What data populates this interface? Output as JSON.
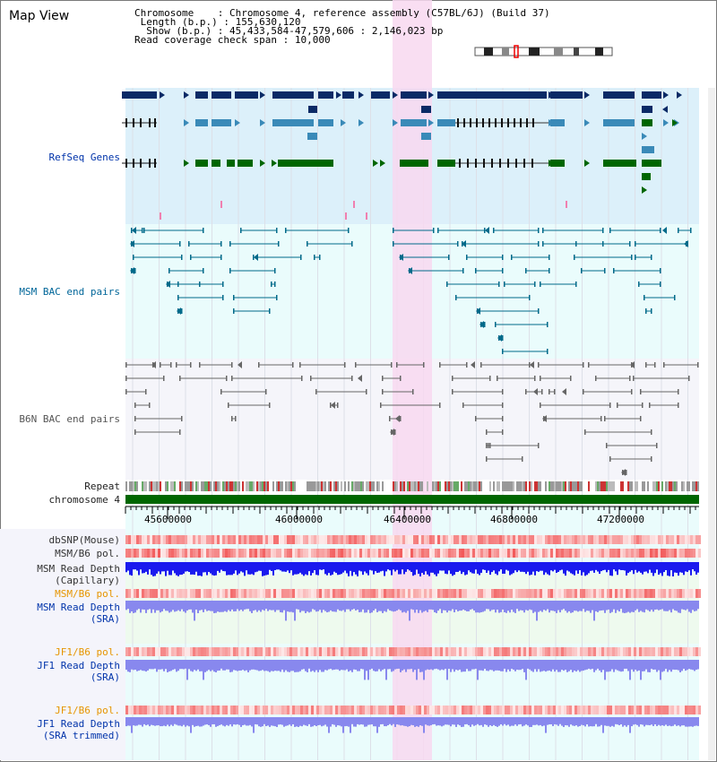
{
  "title": "Map View",
  "info": {
    "chromosome_key": "Chromosome",
    "chromosome_val": "Chromosome 4, reference assembly (C57BL/6J) (Build 37)",
    "length_key": "Length (b.p.)",
    "length_val": "155,630,120",
    "show_key": "Show (b.p.)",
    "show_val": "45,433,584-47,579,606 : 2,146,023 bp",
    "span_key": "Read coverage check span",
    "span_val": "10,000"
  },
  "tracks": {
    "refseq": "RefSeq Genes",
    "msm_bac": "MSM BAC end pairs",
    "b6n_bac": "B6N BAC end pairs",
    "repeat": "Repeat",
    "chromosome": "chromosome 4",
    "dbsnp": "dbSNP(Mouse)",
    "msm_b6_pol": "MSM/B6 pol.",
    "msm_depth_cap_1": "MSM Read Depth",
    "msm_depth_cap_2": "(Capillary)",
    "msm_b6_pol2": "MSM/B6 pol.",
    "msm_depth_sra_1": "MSM Read Depth",
    "msm_depth_sra_2": "(SRA)",
    "jf1_b6_pol": "JF1/B6 pol.",
    "jf1_depth_sra_1": "JF1 Read Depth",
    "jf1_depth_sra_2": "(SRA)",
    "jf1_b6_pol2": "JF1/B6 pol.",
    "jf1_depth_trim_1": "JF1 Read Depth",
    "jf1_depth_trim_2": "(SRA trimmed)"
  },
  "ruler": [
    "45600000",
    "46000000",
    "46400000",
    "46800000",
    "47200000"
  ],
  "colors": {
    "refseq_bg": "#dcf0fa",
    "bac_bg": "#eafcfc",
    "gray_bg": "#f5f5fa",
    "highlight": "#f8d8f0",
    "gene_dark": "#0a2a66",
    "gene_mid": "#3a8ab8",
    "gene_green": "#006600",
    "depth_blue": "#1a1aee",
    "depth_light": "#8888ee",
    "chrom_green": "#006600"
  }
}
